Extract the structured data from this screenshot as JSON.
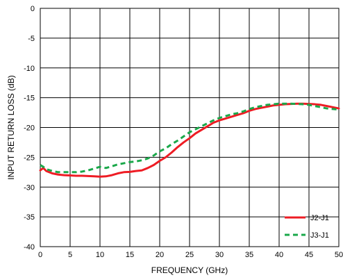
{
  "chart_data": {
    "type": "line",
    "xlabel": "FREQUENCY (GHz)",
    "ylabel": "INPUT RETURN LOSS (dB)",
    "xlim": [
      0,
      50
    ],
    "ylim": [
      -40,
      0
    ],
    "xticks": [
      0,
      5,
      10,
      15,
      20,
      25,
      30,
      35,
      40,
      45,
      50
    ],
    "yticks": [
      0,
      -5,
      -10,
      -15,
      -20,
      -25,
      -30,
      -35,
      -40
    ],
    "grid": true,
    "legend_position": "bottom-right",
    "series": [
      {
        "name": "J2-J1",
        "color": "#ee1c24",
        "style": "solid",
        "points": [
          [
            0,
            -27.2
          ],
          [
            0.5,
            -26.8
          ],
          [
            1,
            -27.3
          ],
          [
            2,
            -27.7
          ],
          [
            3,
            -27.9
          ],
          [
            4,
            -28.0
          ],
          [
            5,
            -28.05
          ],
          [
            6,
            -28.1
          ],
          [
            7,
            -28.1
          ],
          [
            8,
            -28.15
          ],
          [
            9,
            -28.2
          ],
          [
            10,
            -28.25
          ],
          [
            11,
            -28.2
          ],
          [
            12,
            -28.0
          ],
          [
            13,
            -27.7
          ],
          [
            14,
            -27.5
          ],
          [
            15,
            -27.45
          ],
          [
            16,
            -27.3
          ],
          [
            17,
            -27.2
          ],
          [
            18,
            -26.8
          ],
          [
            19,
            -26.3
          ],
          [
            20,
            -25.6
          ],
          [
            21,
            -25.0
          ],
          [
            22,
            -24.2
          ],
          [
            23,
            -23.3
          ],
          [
            24,
            -22.5
          ],
          [
            25,
            -21.8
          ],
          [
            26,
            -21.0
          ],
          [
            27,
            -20.4
          ],
          [
            28,
            -19.8
          ],
          [
            29,
            -19.2
          ],
          [
            30,
            -18.8
          ],
          [
            31,
            -18.5
          ],
          [
            32,
            -18.2
          ],
          [
            33,
            -17.9
          ],
          [
            34,
            -17.6
          ],
          [
            35,
            -17.2
          ],
          [
            36,
            -16.9
          ],
          [
            37,
            -16.7
          ],
          [
            38,
            -16.5
          ],
          [
            39,
            -16.3
          ],
          [
            40,
            -16.2
          ],
          [
            41,
            -16.1
          ],
          [
            42,
            -16.05
          ],
          [
            43,
            -16.0
          ],
          [
            44,
            -16.0
          ],
          [
            45,
            -16.05
          ],
          [
            46,
            -16.1
          ],
          [
            47,
            -16.2
          ],
          [
            48,
            -16.4
          ],
          [
            49,
            -16.6
          ],
          [
            50,
            -16.8
          ]
        ]
      },
      {
        "name": "J3-J1",
        "color": "#1aa84a",
        "style": "dashed",
        "points": [
          [
            0,
            -26.3
          ],
          [
            0.5,
            -26.6
          ],
          [
            1,
            -27.0
          ],
          [
            2,
            -27.3
          ],
          [
            3,
            -27.5
          ],
          [
            4,
            -27.5
          ],
          [
            5,
            -27.5
          ],
          [
            6,
            -27.5
          ],
          [
            7,
            -27.4
          ],
          [
            8,
            -27.2
          ],
          [
            9,
            -26.9
          ],
          [
            10,
            -26.6
          ],
          [
            11,
            -26.8
          ],
          [
            12,
            -26.5
          ],
          [
            13,
            -26.2
          ],
          [
            14,
            -26.0
          ],
          [
            15,
            -25.8
          ],
          [
            16,
            -25.7
          ],
          [
            17,
            -25.5
          ],
          [
            18,
            -25.2
          ],
          [
            19,
            -24.7
          ],
          [
            20,
            -24.0
          ],
          [
            21,
            -23.5
          ],
          [
            22,
            -22.8
          ],
          [
            23,
            -22.2
          ],
          [
            24,
            -21.5
          ],
          [
            25,
            -20.8
          ],
          [
            26,
            -20.3
          ],
          [
            27,
            -19.8
          ],
          [
            28,
            -19.3
          ],
          [
            29,
            -18.8
          ],
          [
            30,
            -18.4
          ],
          [
            31,
            -18.1
          ],
          [
            32,
            -17.8
          ],
          [
            33,
            -17.6
          ],
          [
            34,
            -17.3
          ],
          [
            35,
            -16.9
          ],
          [
            36,
            -16.6
          ],
          [
            37,
            -16.4
          ],
          [
            38,
            -16.2
          ],
          [
            39,
            -16.1
          ],
          [
            40,
            -16.0
          ],
          [
            41,
            -16.0
          ],
          [
            42,
            -16.0
          ],
          [
            43,
            -16.05
          ],
          [
            44,
            -16.1
          ],
          [
            45,
            -16.2
          ],
          [
            46,
            -16.4
          ],
          [
            47,
            -16.6
          ],
          [
            48,
            -16.8
          ],
          [
            49,
            -16.9
          ],
          [
            50,
            -17.0
          ]
        ]
      }
    ]
  }
}
